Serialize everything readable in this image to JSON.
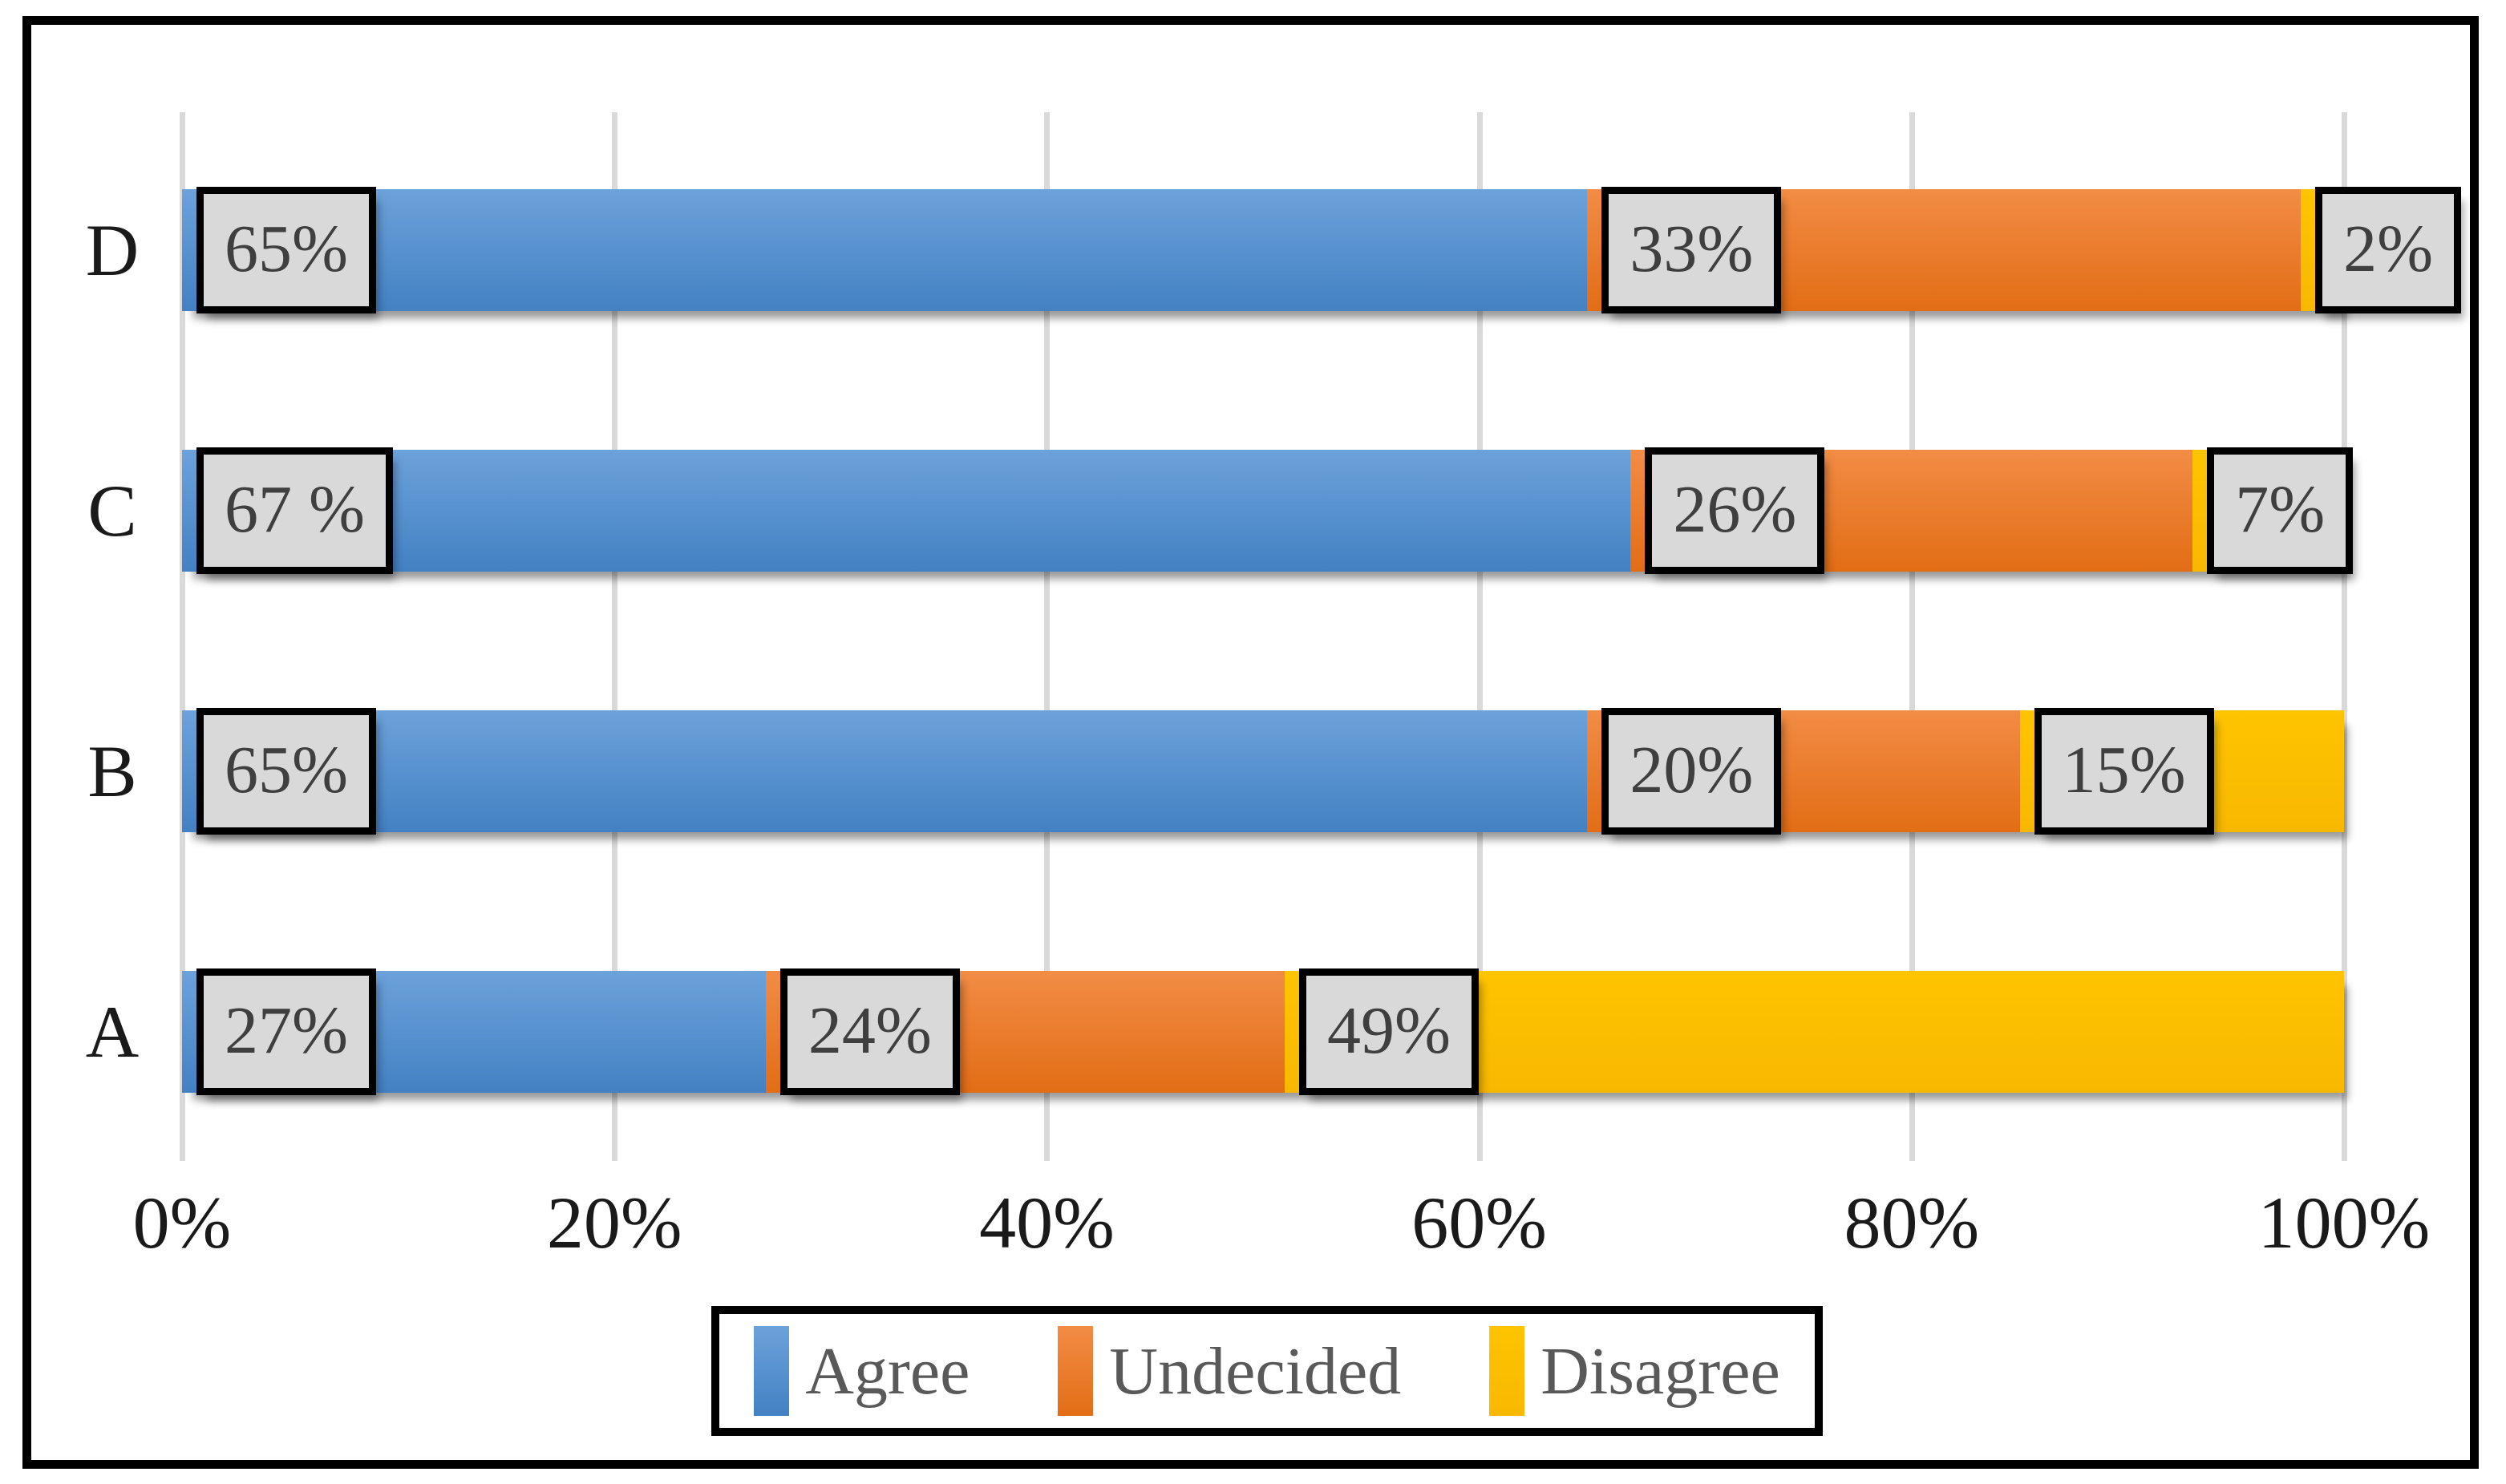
{
  "chart_data": {
    "type": "bar",
    "orientation": "horizontal",
    "stacked": true,
    "title": "",
    "categories": [
      "D",
      "C",
      "B",
      "A"
    ],
    "x_axis": {
      "label": "",
      "range": [
        0,
        100
      ],
      "tick_values": [
        0,
        20,
        40,
        60,
        80,
        100
      ],
      "tick_labels": [
        "0%",
        "20%",
        "40%",
        "60%",
        "80%",
        "100%"
      ],
      "grid": true
    },
    "series": [
      {
        "name": "Agree",
        "color": "#5B9BD5",
        "color_top": "#6CA2DA",
        "color_bottom": "#4381C3",
        "values": [
          65,
          67,
          65,
          27
        ],
        "data_labels": [
          "65%",
          "67 %",
          "65%",
          "27%"
        ]
      },
      {
        "name": "Undecided",
        "color": "#ED7D31",
        "color_top": "#F28C45",
        "color_bottom": "#E26D15",
        "values": [
          33,
          26,
          20,
          24
        ],
        "data_labels": [
          "33%",
          "26%",
          "20%",
          "24%"
        ]
      },
      {
        "name": "Disagree",
        "color": "#FFC000",
        "color_top": "#FFC400",
        "color_bottom": "#F8B800",
        "values": [
          2,
          7,
          15,
          49
        ],
        "data_labels": [
          "2%",
          "7%",
          "15%",
          "49%"
        ]
      }
    ],
    "legend": {
      "position": "bottom",
      "entries": [
        "Agree",
        "Undecided",
        "Disagree"
      ]
    },
    "colors": {
      "background": "#FFFFFF",
      "outer_border": "#000000",
      "gridline": "#D9D9D9",
      "label_box_bg": "#D9D9D9",
      "label_box_border": "#000000",
      "label_box_text": "#3F3F3F",
      "axis_text": "#1A1A1A",
      "category_text": "#1A1A1A",
      "legend_text": "#595959",
      "legend_border": "#000000",
      "bar_shadow": "#8C8C8C"
    }
  }
}
